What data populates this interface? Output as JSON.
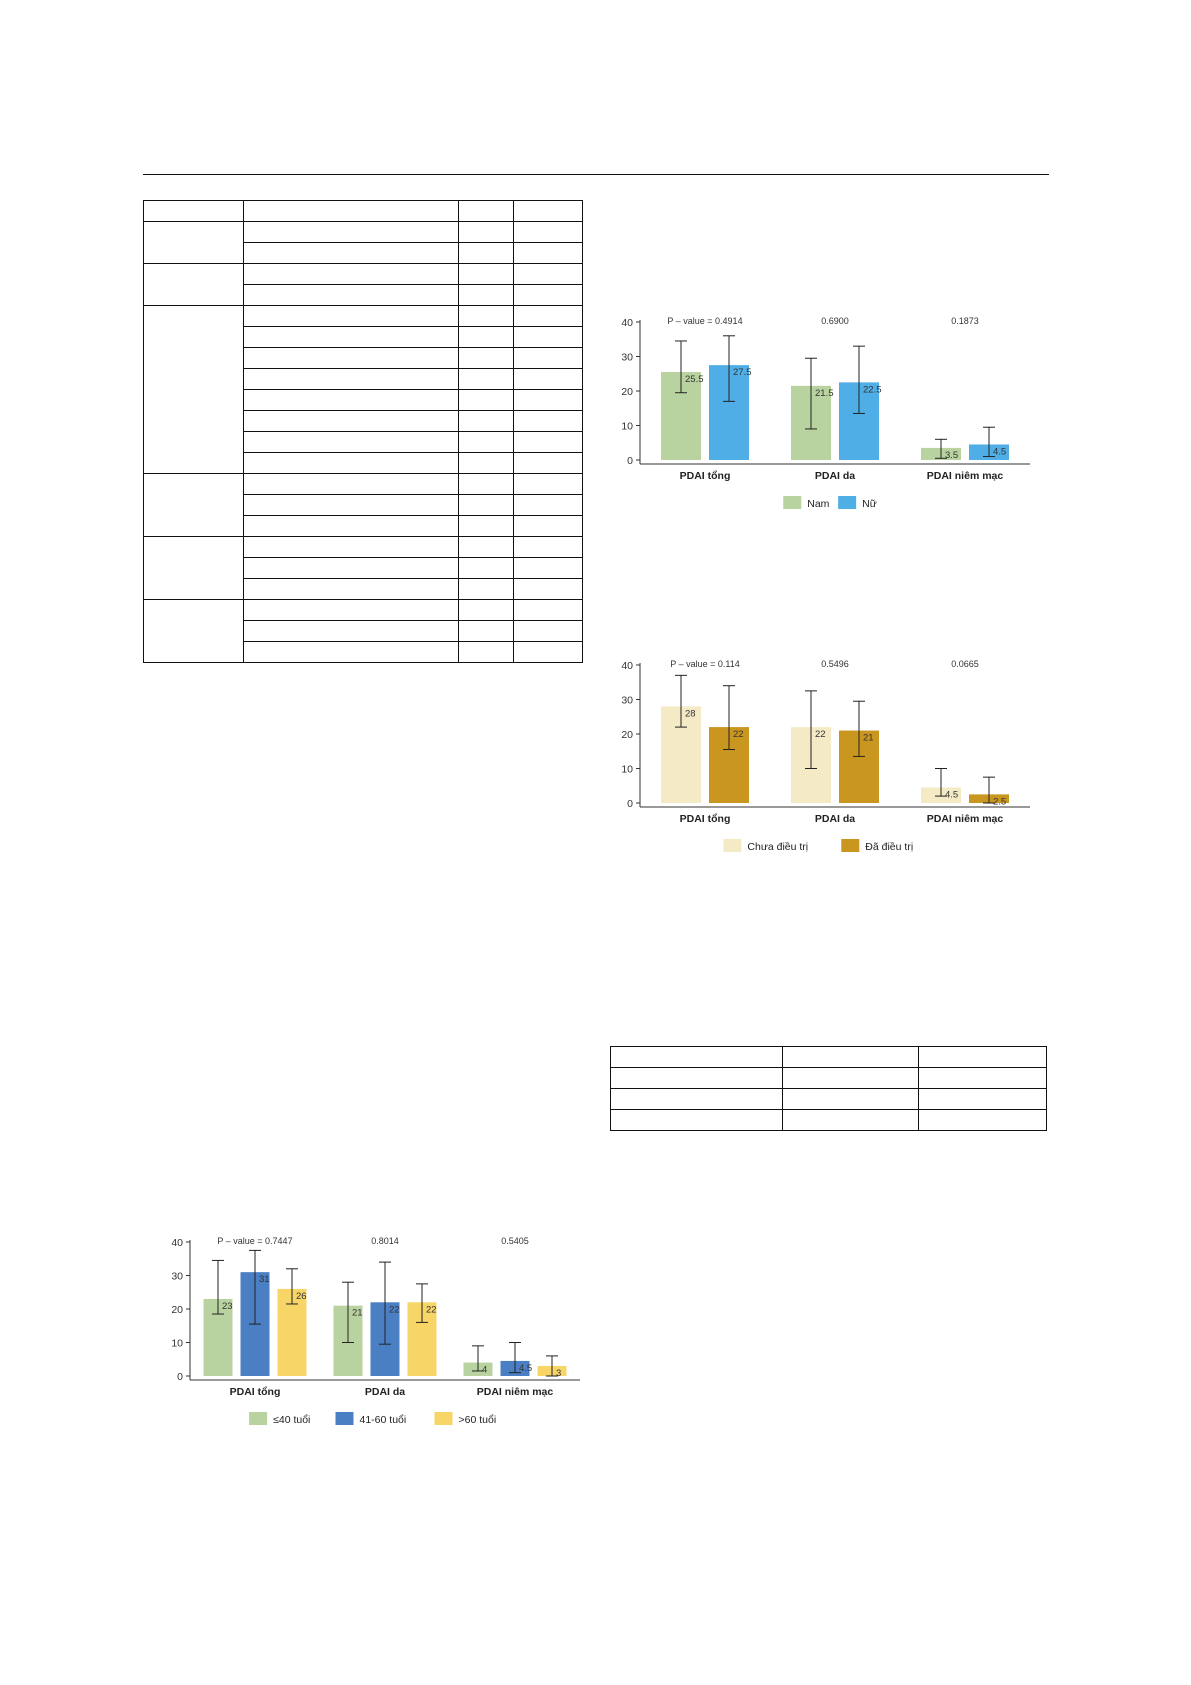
{
  "page": {
    "table_top": {
      "rows": 22,
      "cols": 4,
      "merged_groups": [
        2,
        2,
        8,
        3,
        3,
        3
      ]
    },
    "table_bottom": {
      "rows": 4,
      "cols": 3
    }
  },
  "chart_data": [
    {
      "type": "bar",
      "categories": [
        "PDAI tổng",
        "PDAI da",
        "PDAI niêm mạc"
      ],
      "series": [
        {
          "name": "Nam",
          "values": [
            25.5,
            21.5,
            3.5
          ],
          "error_low": [
            19.5,
            9,
            0.5
          ],
          "error_high": [
            34.5,
            29.5,
            6
          ],
          "color": "#b9d3a0"
        },
        {
          "name": "Nữ",
          "values": [
            27.5,
            22.5,
            4.5
          ],
          "error_low": [
            17,
            13.5,
            1
          ],
          "error_high": [
            36,
            33,
            9.5
          ],
          "color": "#4faee6"
        }
      ],
      "value_labels": [
        [
          "25.5",
          "21.5",
          "3.5"
        ],
        [
          "27.5",
          "22.5",
          "4.5"
        ]
      ],
      "p_values": [
        "P – value = 0.4914",
        "0.6900",
        "0.1873"
      ],
      "ylim": [
        0,
        40
      ],
      "yticks": [
        "0",
        "10",
        "20",
        "30",
        "40"
      ],
      "legend_position": "bottom",
      "grid": false
    },
    {
      "type": "bar",
      "categories": [
        "PDAI tổng",
        "PDAI da",
        "PDAI niêm mạc"
      ],
      "series": [
        {
          "name": "Chưa điều trị",
          "values": [
            28,
            22,
            4.5
          ],
          "error_low": [
            22,
            10,
            2
          ],
          "error_high": [
            37,
            32.5,
            10
          ],
          "color": "#f4ebc6"
        },
        {
          "name": "Đã điều trị",
          "values": [
            22,
            21,
            2.5
          ],
          "error_low": [
            15.5,
            13.5,
            0
          ],
          "error_high": [
            34,
            29.5,
            7.5
          ],
          "color": "#c9961f"
        }
      ],
      "value_labels": [
        [
          "28",
          "22",
          "4.5"
        ],
        [
          "22",
          "21",
          "2.5"
        ]
      ],
      "p_values": [
        "P – value = 0.114",
        "0.5496",
        "0.0665"
      ],
      "ylim": [
        0,
        40
      ],
      "yticks": [
        "0",
        "10",
        "20",
        "30",
        "40"
      ],
      "legend_position": "bottom",
      "grid": false
    },
    {
      "type": "bar",
      "categories": [
        "PDAI tổng",
        "PDAI da",
        "PDAI niêm mạc"
      ],
      "series": [
        {
          "name": "≤40 tuổi",
          "values": [
            23,
            21,
            4
          ],
          "error_low": [
            18.5,
            10,
            1.5
          ],
          "error_high": [
            34.5,
            28,
            9
          ],
          "color": "#b9d3a0"
        },
        {
          "name": "41-60 tuổi",
          "values": [
            31,
            22,
            4.5
          ],
          "error_low": [
            15.5,
            9.5,
            1
          ],
          "error_high": [
            37.5,
            34,
            10
          ],
          "color": "#4a7fc4"
        },
        {
          "name": ">60 tuổi",
          "values": [
            26,
            22,
            3
          ],
          "error_low": [
            21.5,
            16,
            0
          ],
          "error_high": [
            32,
            27.5,
            6
          ],
          "color": "#f7d567"
        }
      ],
      "value_labels": [
        [
          "23",
          "21",
          "4"
        ],
        [
          "31",
          "22",
          "4.5"
        ],
        [
          "26",
          "22",
          "3"
        ]
      ],
      "p_values": [
        "P – value = 0.7447",
        "0.8014",
        "0.5405"
      ],
      "ylim": [
        0,
        40
      ],
      "yticks": [
        "0",
        "10",
        "20",
        "30",
        "40"
      ],
      "legend_position": "bottom",
      "grid": false
    }
  ]
}
